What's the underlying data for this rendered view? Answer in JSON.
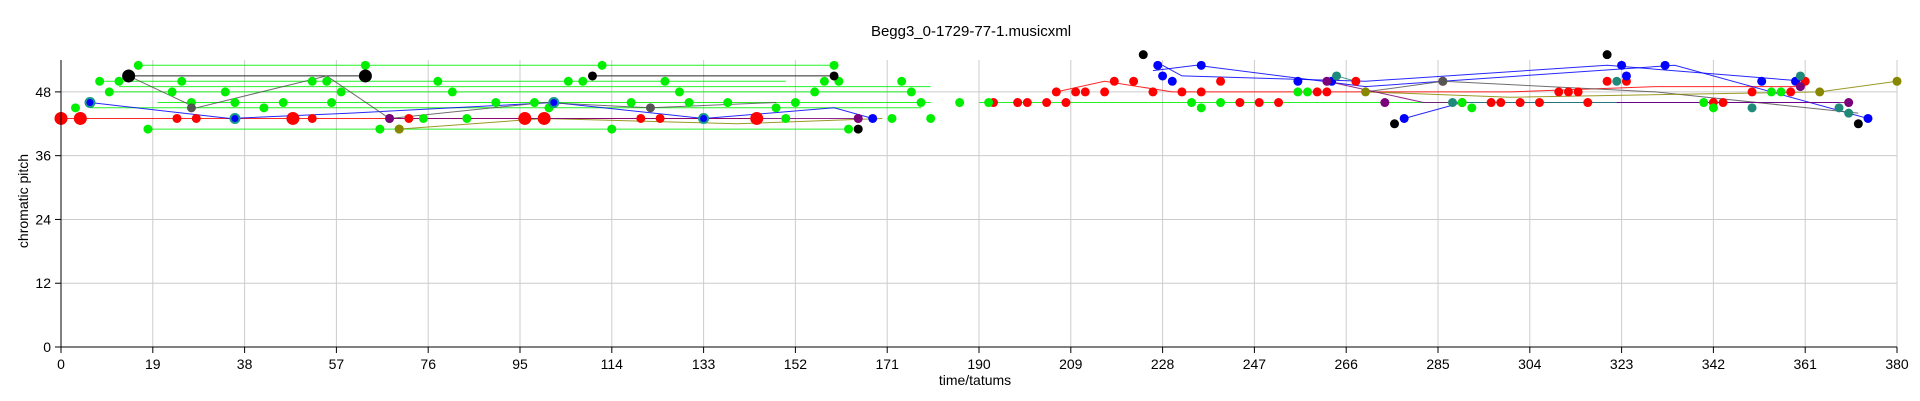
{
  "chart_data": {
    "type": "scatter",
    "title": "Begg3_0-1729-77-1.musicxml",
    "xlabel": "time/tatums",
    "ylabel": "chromatic pitch",
    "xlim": [
      0,
      380
    ],
    "ylim": [
      0,
      54
    ],
    "x_ticks": [
      "0",
      "19",
      "38",
      "57",
      "76",
      "95",
      "114",
      "133",
      "152",
      "171",
      "190",
      "209",
      "228",
      "247",
      "266",
      "285",
      "304",
      "323",
      "342",
      "361",
      "380"
    ],
    "y_ticks": [
      "0",
      "12",
      "24",
      "36",
      "48"
    ],
    "grid": true,
    "colors": {
      "red": "#ff0000",
      "green": "#00ee00",
      "blue": "#0000ff",
      "black": "#000000",
      "gray": "#555555",
      "olive": "#888800",
      "purple": "#7b007b",
      "teal": "#1f8a7a"
    },
    "series": [
      {
        "color": "red",
        "line_segments": [
          [
            [
              0,
              43
            ],
            [
              4,
              43
            ],
            [
              20,
              43
            ],
            [
              28,
              43
            ],
            [
              48,
              43
            ],
            [
              70,
              43
            ],
            [
              96,
              43
            ],
            [
              100,
              43
            ],
            [
              120,
              43
            ],
            [
              132,
              43
            ],
            [
              144,
              43
            ]
          ],
          [
            [
              206,
              48
            ],
            [
              216,
              50
            ],
            [
              230,
              48
            ],
            [
              260,
              48
            ],
            [
              300,
              48
            ],
            [
              330,
              49
            ],
            [
              361,
              49
            ]
          ]
        ],
        "points": [
          {
            "x": 0,
            "y": 43,
            "big": true
          },
          {
            "x": 4,
            "y": 43,
            "big": true
          },
          {
            "x": 24,
            "y": 43
          },
          {
            "x": 28,
            "y": 43
          },
          {
            "x": 48,
            "y": 43,
            "big": true
          },
          {
            "x": 52,
            "y": 43
          },
          {
            "x": 72,
            "y": 43
          },
          {
            "x": 96,
            "y": 43,
            "big": true
          },
          {
            "x": 100,
            "y": 43,
            "big": true
          },
          {
            "x": 120,
            "y": 43
          },
          {
            "x": 124,
            "y": 43
          },
          {
            "x": 144,
            "y": 43,
            "big": true
          },
          {
            "x": 165,
            "y": 43
          },
          {
            "x": 193,
            "y": 46
          },
          {
            "x": 198,
            "y": 46
          },
          {
            "x": 200,
            "y": 46
          },
          {
            "x": 204,
            "y": 46
          },
          {
            "x": 206,
            "y": 48
          },
          {
            "x": 208,
            "y": 46
          },
          {
            "x": 210,
            "y": 48
          },
          {
            "x": 212,
            "y": 48
          },
          {
            "x": 216,
            "y": 48
          },
          {
            "x": 218,
            "y": 50
          },
          {
            "x": 222,
            "y": 50
          },
          {
            "x": 226,
            "y": 48
          },
          {
            "x": 232,
            "y": 48
          },
          {
            "x": 236,
            "y": 48
          },
          {
            "x": 240,
            "y": 50
          },
          {
            "x": 244,
            "y": 46
          },
          {
            "x": 248,
            "y": 46
          },
          {
            "x": 252,
            "y": 46
          },
          {
            "x": 260,
            "y": 48
          },
          {
            "x": 262,
            "y": 48
          },
          {
            "x": 268,
            "y": 50
          },
          {
            "x": 286,
            "y": 50
          },
          {
            "x": 290,
            "y": 46
          },
          {
            "x": 296,
            "y": 46
          },
          {
            "x": 298,
            "y": 46
          },
          {
            "x": 302,
            "y": 46
          },
          {
            "x": 306,
            "y": 46
          },
          {
            "x": 310,
            "y": 48
          },
          {
            "x": 312,
            "y": 48
          },
          {
            "x": 314,
            "y": 48
          },
          {
            "x": 316,
            "y": 46
          },
          {
            "x": 320,
            "y": 50
          },
          {
            "x": 324,
            "y": 50
          },
          {
            "x": 342,
            "y": 46
          },
          {
            "x": 344,
            "y": 46
          },
          {
            "x": 350,
            "y": 48
          },
          {
            "x": 358,
            "y": 48
          },
          {
            "x": 361,
            "y": 50
          }
        ]
      },
      {
        "color": "green",
        "line_segments": [
          [
            [
              16,
              53
            ],
            [
              160,
              53
            ]
          ],
          [
            [
              8,
              50
            ],
            [
              150,
              50
            ]
          ],
          [
            [
              12,
              49
            ],
            [
              180,
              49
            ]
          ],
          [
            [
              10,
              48
            ],
            [
              176,
              48
            ]
          ],
          [
            [
              20,
              46
            ],
            [
              180,
              46
            ]
          ],
          [
            [
              18,
              41
            ],
            [
              162,
              41
            ]
          ],
          [
            [
              190,
              46
            ],
            [
              361,
              46
            ]
          ],
          [
            [
              6,
              45
            ],
            [
              178,
              45
            ]
          ]
        ],
        "points": [
          {
            "x": 3,
            "y": 45
          },
          {
            "x": 8,
            "y": 50
          },
          {
            "x": 10,
            "y": 48
          },
          {
            "x": 12,
            "y": 50
          },
          {
            "x": 16,
            "y": 53
          },
          {
            "x": 18,
            "y": 41
          },
          {
            "x": 23,
            "y": 48
          },
          {
            "x": 25,
            "y": 50
          },
          {
            "x": 27,
            "y": 46
          },
          {
            "x": 34,
            "y": 48
          },
          {
            "x": 36,
            "y": 46
          },
          {
            "x": 42,
            "y": 45
          },
          {
            "x": 46,
            "y": 46
          },
          {
            "x": 52,
            "y": 50
          },
          {
            "x": 55,
            "y": 50
          },
          {
            "x": 56,
            "y": 46
          },
          {
            "x": 58,
            "y": 48
          },
          {
            "x": 63,
            "y": 53
          },
          {
            "x": 66,
            "y": 41
          },
          {
            "x": 70,
            "y": 41
          },
          {
            "x": 75,
            "y": 43
          },
          {
            "x": 78,
            "y": 50
          },
          {
            "x": 81,
            "y": 48
          },
          {
            "x": 84,
            "y": 43
          },
          {
            "x": 90,
            "y": 46
          },
          {
            "x": 98,
            "y": 46
          },
          {
            "x": 101,
            "y": 45
          },
          {
            "x": 105,
            "y": 50
          },
          {
            "x": 108,
            "y": 50
          },
          {
            "x": 112,
            "y": 53
          },
          {
            "x": 114,
            "y": 41
          },
          {
            "x": 118,
            "y": 46
          },
          {
            "x": 125,
            "y": 50
          },
          {
            "x": 128,
            "y": 48
          },
          {
            "x": 130,
            "y": 46
          },
          {
            "x": 138,
            "y": 46
          },
          {
            "x": 148,
            "y": 45
          },
          {
            "x": 150,
            "y": 43
          },
          {
            "x": 152,
            "y": 46
          },
          {
            "x": 156,
            "y": 48
          },
          {
            "x": 158,
            "y": 50
          },
          {
            "x": 160,
            "y": 53
          },
          {
            "x": 161,
            "y": 50
          },
          {
            "x": 163,
            "y": 41
          },
          {
            "x": 172,
            "y": 43
          },
          {
            "x": 174,
            "y": 50
          },
          {
            "x": 176,
            "y": 48
          },
          {
            "x": 178,
            "y": 46
          },
          {
            "x": 180,
            "y": 43
          },
          {
            "x": 186,
            "y": 46
          },
          {
            "x": 192,
            "y": 46
          },
          {
            "x": 234,
            "y": 46
          },
          {
            "x": 236,
            "y": 45
          },
          {
            "x": 240,
            "y": 46
          },
          {
            "x": 256,
            "y": 48
          },
          {
            "x": 258,
            "y": 48
          },
          {
            "x": 290,
            "y": 46
          },
          {
            "x": 292,
            "y": 45
          },
          {
            "x": 340,
            "y": 46
          },
          {
            "x": 342,
            "y": 45
          },
          {
            "x": 354,
            "y": 48
          },
          {
            "x": 356,
            "y": 48
          }
        ]
      },
      {
        "color": "blue",
        "line_segments": [
          [
            [
              6,
              46
            ],
            [
              35,
              43
            ],
            [
              60,
              44
            ],
            [
              102,
              46
            ],
            [
              133,
              43
            ],
            [
              160,
              45
            ],
            [
              168,
              43
            ]
          ],
          [
            [
              228,
              53
            ],
            [
              232,
              51
            ],
            [
              270,
              50
            ],
            [
              320,
              53
            ],
            [
              361,
              50
            ]
          ],
          [
            [
              226,
              52
            ],
            [
              235,
              53
            ],
            [
              270,
              49
            ],
            [
              334,
              53
            ],
            [
              374,
              43
            ]
          ],
          [
            [
              278,
              43
            ],
            [
              290,
              46
            ],
            [
              340,
              46
            ],
            [
              368,
              46
            ]
          ]
        ],
        "points": [
          {
            "x": 6,
            "y": 46,
            "ring": true
          },
          {
            "x": 36,
            "y": 43,
            "ring": true
          },
          {
            "x": 102,
            "y": 46,
            "ring": true
          },
          {
            "x": 133,
            "y": 43,
            "ring": true
          },
          {
            "x": 168,
            "y": 43
          },
          {
            "x": 227,
            "y": 53
          },
          {
            "x": 228,
            "y": 51
          },
          {
            "x": 230,
            "y": 50
          },
          {
            "x": 236,
            "y": 53
          },
          {
            "x": 256,
            "y": 50
          },
          {
            "x": 263,
            "y": 50
          },
          {
            "x": 278,
            "y": 43
          },
          {
            "x": 323,
            "y": 53
          },
          {
            "x": 324,
            "y": 51
          },
          {
            "x": 332,
            "y": 53
          },
          {
            "x": 352,
            "y": 50
          },
          {
            "x": 359,
            "y": 50
          },
          {
            "x": 374,
            "y": 43
          }
        ]
      },
      {
        "color": "black",
        "line_segments": [
          [
            [
              14,
              51
            ],
            [
              63,
              51
            ]
          ],
          [
            [
              110,
              51
            ],
            [
              160,
              51
            ]
          ]
        ],
        "points": [
          {
            "x": 14,
            "y": 51,
            "big": true
          },
          {
            "x": 63,
            "y": 51,
            "big": true
          },
          {
            "x": 110,
            "y": 51
          },
          {
            "x": 160,
            "y": 51
          },
          {
            "x": 165,
            "y": 41
          },
          {
            "x": 224,
            "y": 55
          },
          {
            "x": 276,
            "y": 42
          },
          {
            "x": 320,
            "y": 55
          },
          {
            "x": 372,
            "y": 42
          }
        ]
      },
      {
        "color": "gray",
        "line_segments": [
          [
            [
              14,
              51
            ],
            [
              28,
              45
            ],
            [
              55,
              51
            ],
            [
              68,
              43
            ],
            [
              100,
              46
            ],
            [
              122,
              45
            ],
            [
              148,
              46
            ]
          ],
          [
            [
              270,
              48
            ],
            [
              286,
              50
            ],
            [
              330,
              48
            ],
            [
              372,
              44
            ]
          ]
        ],
        "points": [
          {
            "x": 27,
            "y": 45
          },
          {
            "x": 68,
            "y": 43
          },
          {
            "x": 122,
            "y": 45
          },
          {
            "x": 286,
            "y": 50
          }
        ]
      },
      {
        "color": "olive",
        "line_segments": [
          [
            [
              70,
              41
            ],
            [
              100,
              43
            ],
            [
              140,
              42
            ],
            [
              170,
              43
            ]
          ],
          [
            [
              270,
              48
            ],
            [
              300,
              47
            ],
            [
              364,
              48
            ],
            [
              380,
              50
            ]
          ]
        ],
        "points": [
          {
            "x": 70,
            "y": 41
          },
          {
            "x": 270,
            "y": 48
          },
          {
            "x": 364,
            "y": 48
          },
          {
            "x": 380,
            "y": 50
          }
        ]
      },
      {
        "color": "purple",
        "line_segments": [
          [
            [
              68,
              43
            ],
            [
              165,
              43
            ]
          ],
          [
            [
              262,
              50
            ],
            [
              282,
              46
            ],
            [
              360,
              46
            ],
            [
              370,
              46
            ]
          ]
        ],
        "points": [
          {
            "x": 68,
            "y": 43
          },
          {
            "x": 165,
            "y": 43
          },
          {
            "x": 262,
            "y": 50
          },
          {
            "x": 274,
            "y": 46
          },
          {
            "x": 360,
            "y": 49
          },
          {
            "x": 370,
            "y": 46
          }
        ]
      },
      {
        "color": "teal",
        "line_segments": [
          [
            [
              264,
              51
            ],
            [
              268,
              50
            ]
          ],
          [
            [
              288,
              46
            ],
            [
              322,
              46
            ]
          ]
        ],
        "points": [
          {
            "x": 264,
            "y": 51
          },
          {
            "x": 288,
            "y": 46
          },
          {
            "x": 322,
            "y": 50
          },
          {
            "x": 350,
            "y": 45
          },
          {
            "x": 360,
            "y": 51
          },
          {
            "x": 368,
            "y": 45
          },
          {
            "x": 370,
            "y": 44
          }
        ]
      }
    ]
  }
}
